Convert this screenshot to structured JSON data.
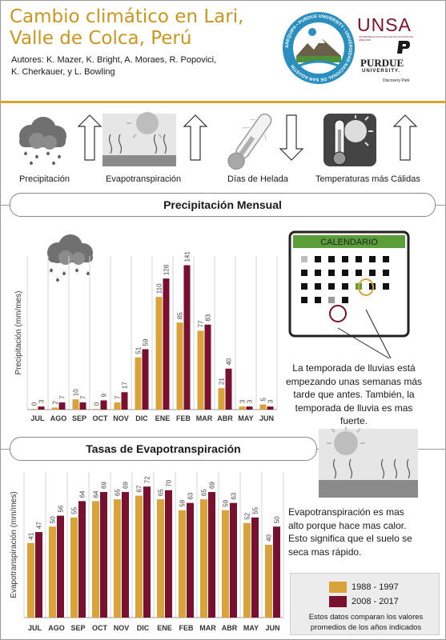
{
  "header": {
    "title_line1": "Cambio climático en Lari,",
    "title_line2": "Valle de Colca, Perú",
    "authors_line1": "Autores: K. Mazer, K. Bright, A. Moraes, R. Popovici,",
    "authors_line2": "K. Cherkauer, y L. Bowling",
    "logo_unsa": "UNSA",
    "logo_unsa_sub": "UNIVERSIDAD NACIONAL DE SAN AGUSTÍN DE AREQUIPA",
    "logo_purdue": "PURDUE",
    "logo_purdue_sub": "UNIVERSITY.",
    "logo_discovery": "Discovery Park",
    "seal_text": "AREQUIPA • PURDUE UNIVERSITY • UNIVERSIDAD NACIONAL DE SAN AGUSTÍN"
  },
  "indicators": [
    {
      "label": "Precipitación",
      "icon": "rain-cloud-icon",
      "trend": "up"
    },
    {
      "label": "Evapotranspiración",
      "icon": "evapotranspiration-icon",
      "trend": "up"
    },
    {
      "label": "Días de Helada",
      "icon": "thermometer-frost-icon",
      "trend": "down"
    },
    {
      "label": "Temperaturas más Cálidas",
      "icon": "thermometer-sun-icon",
      "trend": "up"
    }
  ],
  "sections": {
    "precip_title": "Precipitación Mensual",
    "et_title": "Tasas de Evapotranspiración"
  },
  "calendar": {
    "header": "CALENDARIO",
    "header_color": "#5a9e3a"
  },
  "notes": {
    "precip_note": [
      "La temporada de lluvias está",
      "empezando unas semanas más",
      "tarde que antes. También, la",
      "temporada de lluvia es mas",
      "fuerte."
    ],
    "et_note": [
      "Evapotranspiración es mas",
      "alto porque hace mas calor.",
      "Esto significa que el suelo se",
      "seca mas rápido."
    ]
  },
  "legend": {
    "period1": "1988 - 1997",
    "period2": "2008 - 2017",
    "note_line1": "Estos datos comparan los valores",
    "note_line2": "promedios de los años indicados",
    "color1": "#d9a33a",
    "color2": "#7a1030"
  },
  "chart_data": [
    {
      "type": "bar",
      "title": "Precipitación Mensual",
      "ylabel": "Precipitación (mm/mes)",
      "xlabel": "",
      "categories": [
        "JUL",
        "AGO",
        "SEP",
        "OCT",
        "NOV",
        "DIC",
        "ENE",
        "FEB",
        "MAR",
        "ABR",
        "MAY",
        "JUN"
      ],
      "series": [
        {
          "name": "1988 - 1997",
          "values": [
            0,
            2,
            10,
            0,
            7,
            51,
            110,
            85,
            77,
            21,
            3,
            5
          ]
        },
        {
          "name": "2008 - 2017",
          "values": [
            3,
            7,
            7,
            9,
            17,
            59,
            128,
            141,
            83,
            40,
            3,
            3
          ]
        }
      ],
      "data_labels": [
        [
          "0",
          "2",
          "10",
          "0",
          "7",
          "51",
          "110",
          "85",
          "77",
          "21",
          "3",
          "5"
        ],
        [
          "3",
          "7",
          "7",
          "9",
          "17",
          "59",
          "128",
          "141",
          "83",
          "40",
          "3",
          "3"
        ]
      ],
      "ylim": [
        0,
        150
      ],
      "grid": false,
      "legend": "bottom-right"
    },
    {
      "type": "bar",
      "title": "Tasas de Evapotranspiración",
      "ylabel": "Evapotranspiración (mm/mes)",
      "xlabel": "",
      "categories": [
        "JUL",
        "AGO",
        "SEP",
        "OCT",
        "NOV",
        "DIC",
        "ENE",
        "FEB",
        "MAR",
        "ABR",
        "MAY",
        "JUN"
      ],
      "series": [
        {
          "name": "1988 - 1997",
          "values": [
            41,
            50,
            55,
            64,
            65,
            67,
            65,
            59,
            65,
            59,
            52,
            40
          ]
        },
        {
          "name": "2008 - 2017",
          "values": [
            47,
            56,
            64,
            69,
            69,
            72,
            70,
            63,
            69,
            63,
            55,
            50
          ]
        }
      ],
      "data_labels": [
        [
          "41",
          "50",
          "55",
          "64",
          "65",
          "67",
          "65",
          "59",
          "65",
          "59",
          "52",
          "40"
        ],
        [
          "47",
          "56",
          "64",
          "69",
          "69",
          "72",
          "70",
          "63",
          "69",
          "63",
          "55",
          "50"
        ]
      ],
      "ylim": [
        0,
        80
      ],
      "grid": false,
      "legend": "bottom-right"
    }
  ]
}
